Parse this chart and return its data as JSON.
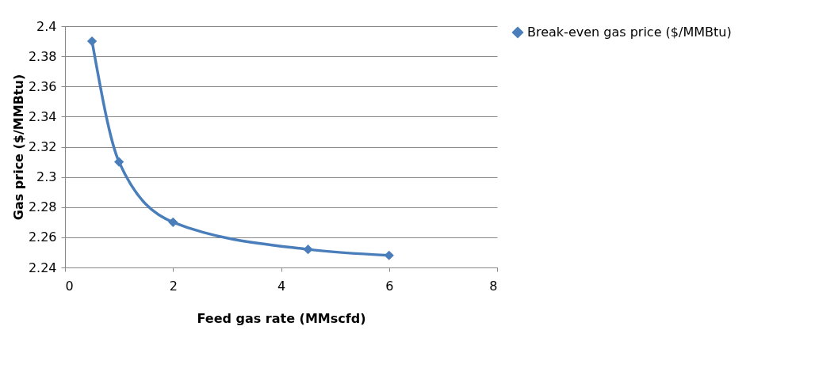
{
  "chart_data": {
    "type": "line",
    "xlabel": "Feed gas rate (MMscfd)",
    "ylabel": "Gas price ($/MMBtu)",
    "x": [
      0.5,
      1,
      2,
      4.5,
      6
    ],
    "series": [
      {
        "name": "Break-even gas price ($/MMBtu)",
        "color": "#4a7ebb",
        "values": [
          2.39,
          2.31,
          2.27,
          2.252,
          2.248
        ]
      }
    ],
    "xlim": [
      0,
      8
    ],
    "xticks": [
      0,
      2,
      4,
      6,
      8
    ],
    "ylim": [
      2.24,
      2.4
    ],
    "yticks": [
      2.24,
      2.26,
      2.28,
      2.3,
      2.32,
      2.34,
      2.36,
      2.38,
      2.4
    ],
    "grid": "y",
    "legend": "right",
    "marker": "diamond",
    "line_style": "solid"
  }
}
